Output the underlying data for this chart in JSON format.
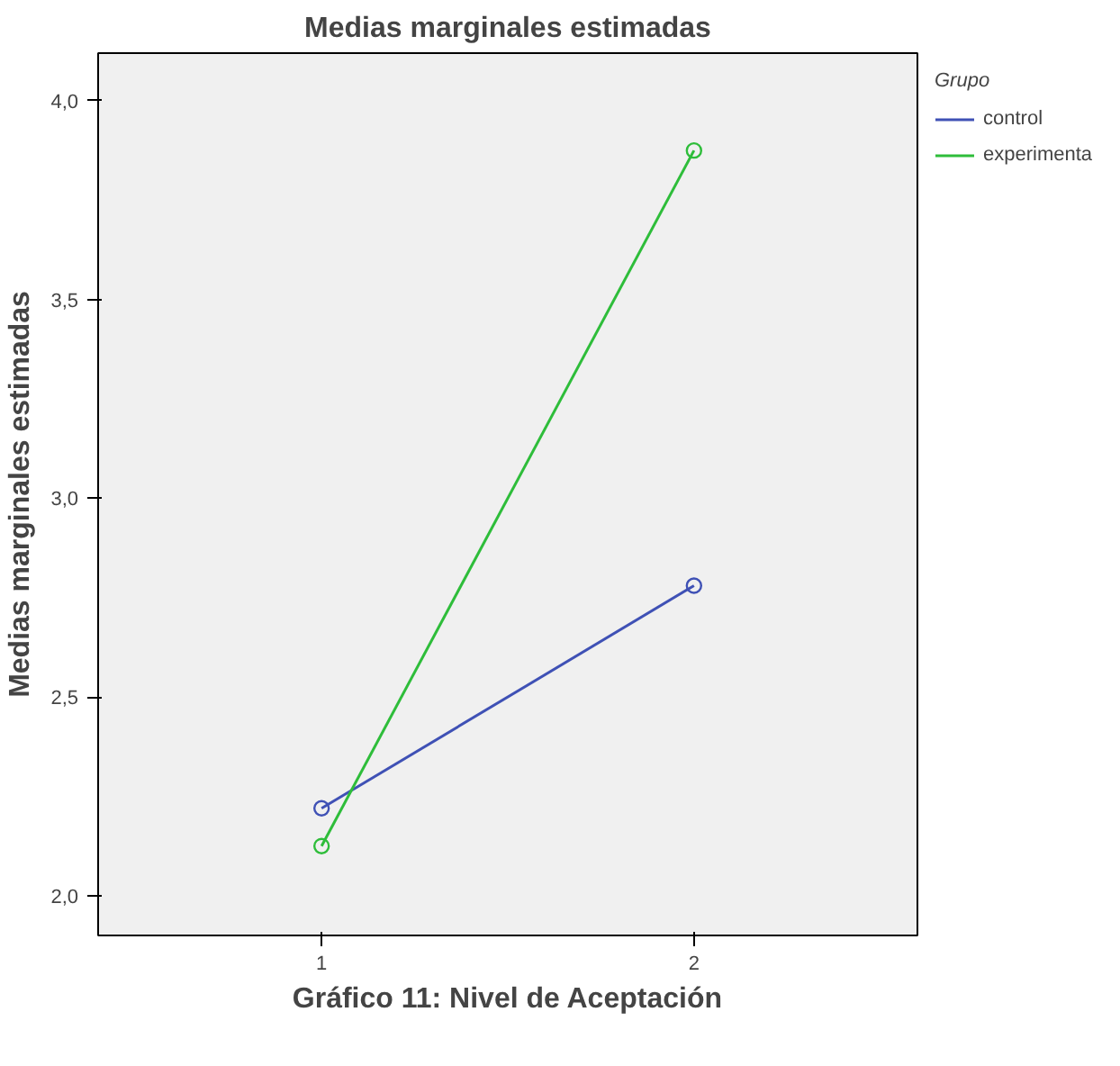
{
  "chart_data": {
    "type": "line",
    "title": "Medias marginales estimadas",
    "xlabel": "Gráfico 11: Nivel de Aceptación",
    "ylabel": "Medias marginales estimadas",
    "legend_title": "Grupo",
    "categories": [
      "1",
      "2"
    ],
    "series": [
      {
        "name": "control",
        "color": "#3f51b5",
        "values": [
          2.22,
          2.78
        ]
      },
      {
        "name": "experimenta",
        "color": "#2ebd3a",
        "values": [
          2.125,
          3.875
        ]
      }
    ],
    "ylim": [
      1.9,
      4.12
    ],
    "yticks": [
      {
        "value": 2.0,
        "label": "2,0"
      },
      {
        "value": 2.5,
        "label": "2,5"
      },
      {
        "value": 3.0,
        "label": "3,0"
      },
      {
        "value": 3.5,
        "label": "3,5"
      },
      {
        "value": 4.0,
        "label": "4,0"
      }
    ],
    "marker": "circle",
    "legend": "top right",
    "grid": false
  }
}
